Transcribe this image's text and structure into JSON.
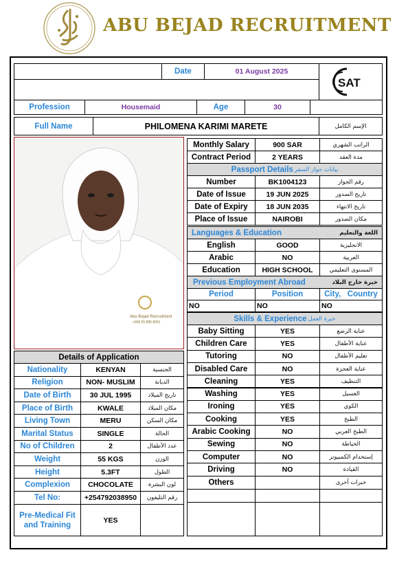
{
  "brand": {
    "name": "ABU BEJAD RECRUITMENT"
  },
  "top": {
    "date_label": "Date",
    "date_value": "01 August 2025",
    "logo_text": "SAT"
  },
  "profession": {
    "label": "Profession",
    "value": "Housemaid"
  },
  "age": {
    "label": "Age",
    "value": "30"
  },
  "full_name": {
    "label": "Full Name",
    "value": "PHILOMENA KARIMI MARETE",
    "label_ar": "الإسم الكامل"
  },
  "contract": {
    "salary_label": "Monthly Salary",
    "salary_value": "900 SAR",
    "salary_ar": "الراتب الشهري",
    "period_label": "Contract Period",
    "period_value": "2 YEARS",
    "period_ar": "مدة العقد"
  },
  "passport": {
    "section_label": "Passport Details",
    "section_ar": "بيانات جواز السفر",
    "rows": [
      {
        "label": "Number",
        "value": "BK1004123",
        "ar": "رقم الجواز"
      },
      {
        "label": "Date of Issue",
        "value": "19 JUN 2025",
        "ar": "تاريخ الصدور"
      },
      {
        "label": "Date of Expiry",
        "value": "18 JUN 2035",
        "ar": "تاريخ الانتهاء"
      },
      {
        "label": "Place of Issue",
        "value": "NAIROBI",
        "ar": "مكان الصدور"
      }
    ]
  },
  "languages": {
    "section_label": "Languages & Education",
    "section_ar": "اللغة والتعليم",
    "rows": [
      {
        "label": "English",
        "value": "GOOD",
        "ar": "الانجليزية"
      },
      {
        "label": "Arabic",
        "value": "NO",
        "ar": "العربية"
      },
      {
        "label": "Education",
        "value": "HIGH SCHOOL",
        "ar": "المستوى التعليمي"
      }
    ]
  },
  "employment": {
    "section_label": "Previous Employment Abroad",
    "section_ar": "خبرة خارج البلاد",
    "col_period": "Period",
    "col_position": "Position",
    "col_city": "City,   Country",
    "period": "NO",
    "position": "NO",
    "city": "NO"
  },
  "skills": {
    "section_label": "Skills & Experience",
    "section_ar": "خبرة العمل",
    "rows": [
      {
        "label": "Baby Sitting",
        "value": "YES",
        "ar": "عناية الرضع"
      },
      {
        "label": "Children Care",
        "value": "YES",
        "ar": "عناية الأطفال"
      },
      {
        "label": "Tutoring",
        "value": "NO",
        "ar": "تعليم الأطفال"
      },
      {
        "label": "Disabled Care",
        "value": "NO",
        "ar": "عناية العجزة"
      },
      {
        "label": "Cleaning",
        "value": "YES",
        "ar": "التنظيف"
      },
      {
        "label": "Washing",
        "value": "YES",
        "ar": "الغسيل"
      },
      {
        "label": "Ironing",
        "value": "YES",
        "ar": "الكوي"
      },
      {
        "label": "Cooking",
        "value": "YES",
        "ar": "الطبخ"
      },
      {
        "label": "Arabic Cooking",
        "value": "NO",
        "ar": "الطبخ العربي"
      },
      {
        "label": "Sewing",
        "value": "NO",
        "ar": "الخياطة"
      },
      {
        "label": "Computer",
        "value": "NO",
        "ar": "إستخدام الكمبيوتر"
      },
      {
        "label": "Driving",
        "value": "NO",
        "ar": "القيادة"
      }
    ],
    "others_label": "Others",
    "others_ar": "خبرات أخرى"
  },
  "application": {
    "section_label": "Details of Application",
    "rows": [
      {
        "label": "Nationality",
        "value": "KENYAN",
        "ar": "الجنسية"
      },
      {
        "label": "Religion",
        "value": "NON- MUSLIM",
        "ar": "الديانة"
      },
      {
        "label": "Date of Birth",
        "value": "30 JUL 1995",
        "ar": "تاريخ الميلاد"
      },
      {
        "label": "Place of Birth",
        "value": "KWALE",
        "ar": "مكان الميلاد"
      },
      {
        "label": "Living Town",
        "value": "MERU",
        "ar": "مكان السكن"
      },
      {
        "label": "Marital Status",
        "value": "SINGLE",
        "ar": "الحالة"
      },
      {
        "label": "No of Children",
        "value": "2",
        "ar": "عدد الأطفال"
      },
      {
        "label": "Weight",
        "value": "55 KGS",
        "ar": "الوزن"
      },
      {
        "label": "Height",
        "value": "5.3FT",
        "ar": "الطول"
      },
      {
        "label": "Complexion",
        "value": "CHOCOLATE",
        "ar": "لون البشرة"
      },
      {
        "label": "Tel No:",
        "value": "+254792038950",
        "ar": "رقم التليفون"
      }
    ],
    "medical_label_1": "Pre-Medical Fit",
    "medical_label_2": "and Training",
    "medical_value": "YES"
  },
  "photo": {
    "badge_line1": "Abu Bejad Recruitment",
    "badge_line2": "+966 55 885 8001"
  }
}
